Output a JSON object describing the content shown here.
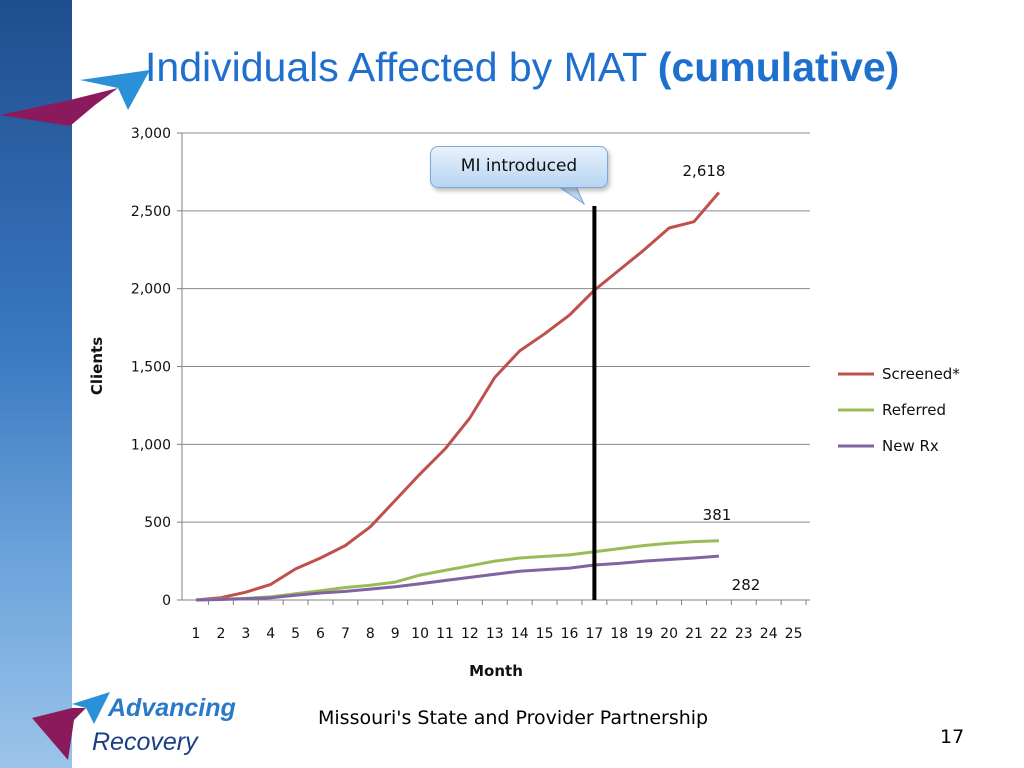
{
  "slide": {
    "title_main": "Individuals Affected by MAT",
    "title_bold": "(cumulative)",
    "footer": "Missouri's State and Provider Partnership",
    "page_number": "17",
    "logo_line1": "Advancing",
    "logo_line2": "Recovery"
  },
  "colors": {
    "title": "#1f6fcf",
    "screened": "#c0504d",
    "referred": "#9bbb59",
    "new_rx": "#8064a2",
    "annotation_line": "#000000"
  },
  "chart_data": {
    "type": "line",
    "title": "",
    "xlabel": "Month",
    "ylabel": "Clients",
    "ylim": [
      0,
      3000
    ],
    "yticks": [
      "0",
      "500",
      "1,000",
      "1,500",
      "2,000",
      "2,500",
      "3,000"
    ],
    "ytick_values": [
      0,
      500,
      1000,
      1500,
      2000,
      2500,
      3000
    ],
    "xticks": [
      "1",
      "2",
      "3",
      "4",
      "5",
      "6",
      "7",
      "8",
      "9",
      "10",
      "11",
      "12",
      "13",
      "14",
      "15",
      "16",
      "17",
      "18",
      "19",
      "20",
      "21",
      "22",
      "23",
      "24",
      "25"
    ],
    "grid": true,
    "legend_position": "right",
    "series": [
      {
        "name": "Screened*",
        "x": [
          1,
          2,
          3,
          4,
          5,
          6,
          7,
          8,
          9,
          10,
          11,
          12,
          13,
          14,
          15,
          16,
          17,
          18,
          19,
          20,
          21,
          22
        ],
        "values": [
          0,
          15,
          50,
          100,
          200,
          270,
          350,
          470,
          640,
          810,
          970,
          1170,
          1430,
          1600,
          1710,
          1830,
          1990,
          2120,
          2250,
          2390,
          2430,
          2618
        ]
      },
      {
        "name": "Referred",
        "x": [
          1,
          2,
          3,
          4,
          5,
          6,
          7,
          8,
          9,
          10,
          11,
          12,
          13,
          14,
          15,
          16,
          17,
          18,
          19,
          20,
          21,
          22
        ],
        "values": [
          0,
          5,
          10,
          20,
          40,
          60,
          80,
          95,
          115,
          160,
          190,
          220,
          250,
          270,
          280,
          290,
          310,
          330,
          350,
          365,
          375,
          381
        ]
      },
      {
        "name": "New Rx",
        "x": [
          1,
          2,
          3,
          4,
          5,
          6,
          7,
          8,
          9,
          10,
          11,
          12,
          13,
          14,
          15,
          16,
          17,
          18,
          19,
          20,
          21,
          22
        ],
        "values": [
          0,
          3,
          8,
          15,
          30,
          45,
          55,
          70,
          85,
          105,
          125,
          145,
          165,
          185,
          195,
          205,
          225,
          235,
          250,
          260,
          270,
          282
        ]
      }
    ],
    "annotations": [
      {
        "text": "MI introduced",
        "x": 17
      },
      {
        "text": "2,618",
        "series": "Screened*"
      },
      {
        "text": "381",
        "series": "Referred"
      },
      {
        "text": "282",
        "series": "New Rx"
      }
    ]
  }
}
